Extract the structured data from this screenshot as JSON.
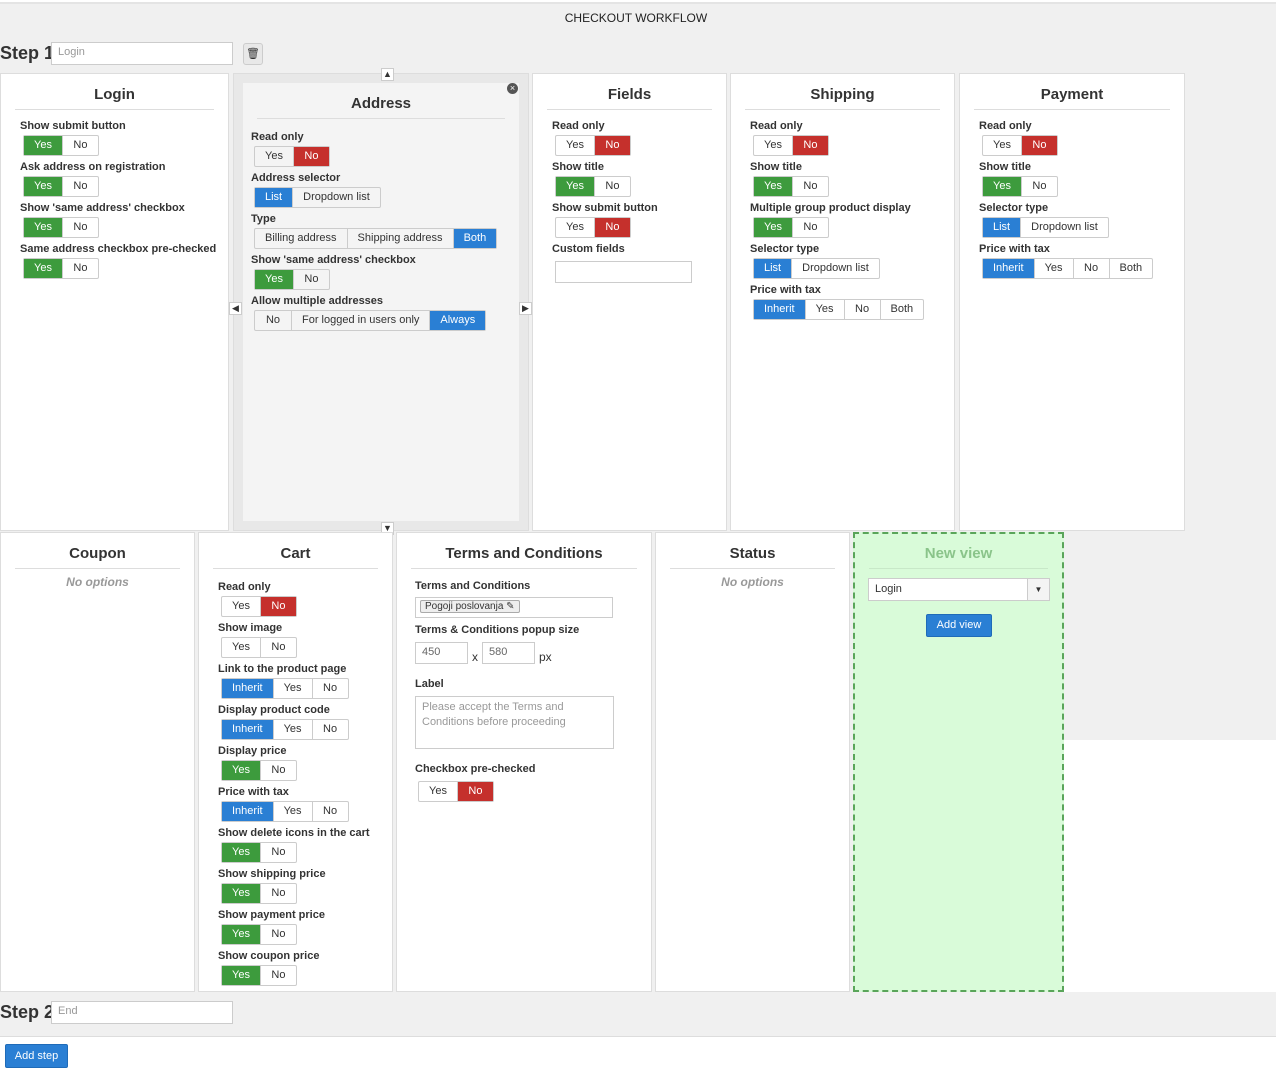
{
  "window_title": "CHECKOUT WORKFLOW",
  "step1": {
    "label": "Step 1",
    "value": "Login"
  },
  "step2": {
    "label": "Step 2",
    "value": "End"
  },
  "add_step": "Add step",
  "colors": {
    "green": "#3d9b3d",
    "red": "#c5302c",
    "blue": "#2a7fd4",
    "new_view_bg": "#d9fbd9"
  },
  "panels": [
    {
      "id": "login",
      "title": "Login",
      "options": [
        {
          "label": "Show submit button",
          "buttons": [
            "Yes",
            "No"
          ],
          "active": 0,
          "color": "g"
        },
        {
          "label": "Ask address on registration",
          "buttons": [
            "Yes",
            "No"
          ],
          "active": 0,
          "color": "g"
        },
        {
          "label": "Show 'same address' checkbox",
          "buttons": [
            "Yes",
            "No"
          ],
          "active": 0,
          "color": "g"
        },
        {
          "label": "Same address checkbox pre-checked",
          "buttons": [
            "Yes",
            "No"
          ],
          "active": 0,
          "color": "g"
        }
      ]
    },
    {
      "id": "address",
      "title": "Address",
      "options": [
        {
          "label": "Read only",
          "buttons": [
            "Yes",
            "No"
          ],
          "active": 1,
          "color": "r"
        },
        {
          "label": "Address selector",
          "buttons": [
            "List",
            "Dropdown list"
          ],
          "active": 0,
          "color": "b"
        },
        {
          "label": "Type",
          "buttons": [
            "Billing address",
            "Shipping address",
            "Both"
          ],
          "active": 2,
          "color": "b"
        },
        {
          "label": "Show 'same address' checkbox",
          "buttons": [
            "Yes",
            "No"
          ],
          "active": 0,
          "color": "g"
        },
        {
          "label": "Allow multiple addresses",
          "buttons": [
            "No",
            "For logged in users only",
            "Always"
          ],
          "active": 2,
          "color": "b"
        }
      ]
    },
    {
      "id": "fields",
      "title": "Fields",
      "options": [
        {
          "label": "Read only",
          "buttons": [
            "Yes",
            "No"
          ],
          "active": 1,
          "color": "r"
        },
        {
          "label": "Show title",
          "buttons": [
            "Yes",
            "No"
          ],
          "active": 0,
          "color": "g"
        },
        {
          "label": "Show submit button",
          "buttons": [
            "Yes",
            "No"
          ],
          "active": 1,
          "color": "r"
        },
        {
          "label": "Custom fields",
          "input": ""
        }
      ]
    },
    {
      "id": "shipping",
      "title": "Shipping",
      "options": [
        {
          "label": "Read only",
          "buttons": [
            "Yes",
            "No"
          ],
          "active": 1,
          "color": "r"
        },
        {
          "label": "Show title",
          "buttons": [
            "Yes",
            "No"
          ],
          "active": 0,
          "color": "g"
        },
        {
          "label": "Multiple group product display",
          "buttons": [
            "Yes",
            "No"
          ],
          "active": 0,
          "color": "g"
        },
        {
          "label": "Selector type",
          "buttons": [
            "List",
            "Dropdown list"
          ],
          "active": 0,
          "color": "b"
        },
        {
          "label": "Price with tax",
          "buttons": [
            "Inherit",
            "Yes",
            "No",
            "Both"
          ],
          "active": 0,
          "color": "b"
        }
      ]
    },
    {
      "id": "payment",
      "title": "Payment",
      "options": [
        {
          "label": "Read only",
          "buttons": [
            "Yes",
            "No"
          ],
          "active": 1,
          "color": "r"
        },
        {
          "label": "Show title",
          "buttons": [
            "Yes",
            "No"
          ],
          "active": 0,
          "color": "g"
        },
        {
          "label": "Selector type",
          "buttons": [
            "List",
            "Dropdown list"
          ],
          "active": 0,
          "color": "b"
        },
        {
          "label": "Price with tax",
          "buttons": [
            "Inherit",
            "Yes",
            "No",
            "Both"
          ],
          "active": 0,
          "color": "b"
        }
      ]
    },
    {
      "id": "coupon",
      "title": "Coupon",
      "no_options": "No options",
      "options": []
    },
    {
      "id": "cart",
      "title": "Cart",
      "options": [
        {
          "label": "Read only",
          "buttons": [
            "Yes",
            "No"
          ],
          "active": 1,
          "color": "r"
        },
        {
          "label": "Show image",
          "buttons": [
            "Yes",
            "No"
          ],
          "active": -1,
          "color": "g"
        },
        {
          "label": "Link to the product page",
          "buttons": [
            "Inherit",
            "Yes",
            "No"
          ],
          "active": 0,
          "color": "b"
        },
        {
          "label": "Display product code",
          "buttons": [
            "Inherit",
            "Yes",
            "No"
          ],
          "active": 0,
          "color": "b"
        },
        {
          "label": "Display price",
          "buttons": [
            "Yes",
            "No"
          ],
          "active": 0,
          "color": "g"
        },
        {
          "label": "Price with tax",
          "buttons": [
            "Inherit",
            "Yes",
            "No"
          ],
          "active": 0,
          "color": "b"
        },
        {
          "label": "Show delete icons in the cart",
          "buttons": [
            "Yes",
            "No"
          ],
          "active": 0,
          "color": "g"
        },
        {
          "label": "Show shipping price",
          "buttons": [
            "Yes",
            "No"
          ],
          "active": 0,
          "color": "g"
        },
        {
          "label": "Show payment price",
          "buttons": [
            "Yes",
            "No"
          ],
          "active": 0,
          "color": "g"
        },
        {
          "label": "Show coupon price",
          "buttons": [
            "Yes",
            "No"
          ],
          "active": 0,
          "color": "g"
        }
      ]
    },
    {
      "id": "terms",
      "title": "Terms and Conditions",
      "options": []
    },
    {
      "id": "status",
      "title": "Status",
      "no_options": "No options",
      "options": []
    }
  ],
  "terms": {
    "tc_label": "Terms and Conditions",
    "tag": "Pogoji poslovanja",
    "size_label": "Terms & Conditions popup size",
    "width": "450",
    "height": "580",
    "x": "x",
    "unit": "px",
    "label_label": "Label",
    "label_placeholder": "Please accept the Terms and Conditions before proceeding",
    "checkbox_label": "Checkbox pre-checked",
    "checkbox_buttons": [
      "Yes",
      "No"
    ]
  },
  "new_view": {
    "title": "New view",
    "select_value": "Login",
    "button": "Add view"
  }
}
